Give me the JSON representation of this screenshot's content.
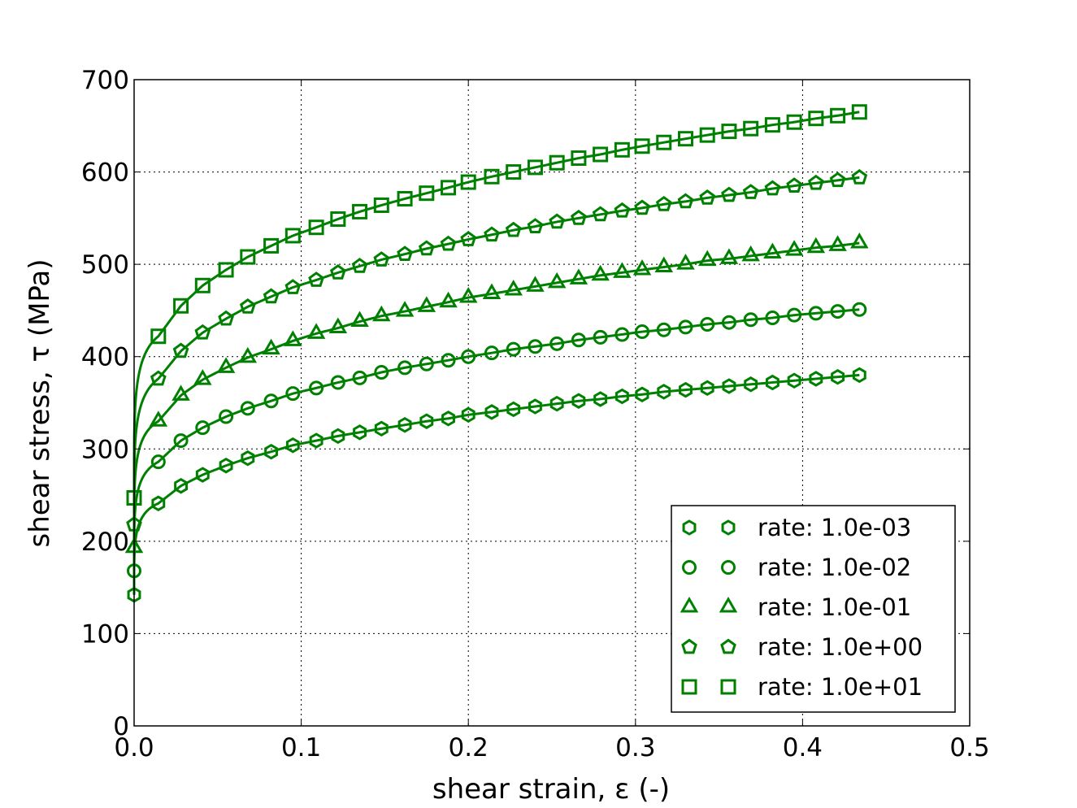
{
  "chart_data": {
    "type": "line",
    "title": "",
    "xlabel": "shear strain, ε (-)",
    "ylabel": "shear stress, τ (MPa)",
    "xlim": [
      0.0,
      0.5
    ],
    "ylim": [
      0,
      700
    ],
    "xticks": [
      "0.0",
      "0.1",
      "0.2",
      "0.3",
      "0.4",
      "0.5"
    ],
    "yticks": [
      "0",
      "100",
      "200",
      "300",
      "400",
      "500",
      "600",
      "700"
    ],
    "grid": true,
    "legend_position": "lower-right",
    "line_color": "#008000",
    "series": [
      {
        "name": "rate: 1.0e-03",
        "marker": "hexagon",
        "x": [
          0.0,
          0.0145,
          0.028,
          0.041,
          0.055,
          0.068,
          0.082,
          0.095,
          0.109,
          0.122,
          0.135,
          0.148,
          0.162,
          0.175,
          0.188,
          0.2,
          0.214,
          0.227,
          0.24,
          0.253,
          0.266,
          0.279,
          0.292,
          0.304,
          0.317,
          0.33,
          0.343,
          0.356,
          0.369,
          0.382,
          0.395,
          0.408,
          0.421,
          0.434
        ],
        "y": [
          142,
          241,
          260,
          272,
          282,
          290,
          297,
          304,
          309,
          314,
          318,
          322,
          326,
          330,
          333,
          337,
          340,
          343,
          346,
          349,
          352,
          354,
          357,
          359,
          362,
          364,
          366,
          368,
          370,
          372,
          374,
          376,
          378,
          380
        ]
      },
      {
        "name": "rate: 1.0e-02",
        "marker": "circle",
        "x": [
          0.0,
          0.0145,
          0.028,
          0.041,
          0.055,
          0.068,
          0.082,
          0.095,
          0.109,
          0.122,
          0.135,
          0.148,
          0.162,
          0.175,
          0.188,
          0.2,
          0.214,
          0.227,
          0.24,
          0.253,
          0.266,
          0.279,
          0.292,
          0.304,
          0.317,
          0.33,
          0.343,
          0.356,
          0.369,
          0.382,
          0.395,
          0.408,
          0.421,
          0.434
        ],
        "y": [
          168,
          286,
          309,
          323,
          335,
          344,
          352,
          360,
          366,
          372,
          377,
          383,
          388,
          392,
          396,
          400,
          404,
          408,
          411,
          414,
          418,
          421,
          424,
          427,
          429,
          432,
          435,
          437,
          440,
          442,
          445,
          447,
          449,
          451
        ]
      },
      {
        "name": "rate: 1.0e-01",
        "marker": "triangle",
        "x": [
          0.0,
          0.0145,
          0.028,
          0.041,
          0.055,
          0.068,
          0.082,
          0.095,
          0.109,
          0.122,
          0.135,
          0.148,
          0.162,
          0.175,
          0.188,
          0.2,
          0.214,
          0.227,
          0.24,
          0.253,
          0.266,
          0.279,
          0.292,
          0.304,
          0.317,
          0.33,
          0.343,
          0.356,
          0.369,
          0.382,
          0.395,
          0.408,
          0.421,
          0.434
        ],
        "y": [
          193,
          330,
          358,
          375,
          388,
          399,
          408,
          417,
          425,
          431,
          438,
          444,
          449,
          454,
          459,
          464,
          468,
          472,
          476,
          480,
          484,
          488,
          491,
          494,
          497,
          500,
          504,
          506,
          509,
          512,
          515,
          518,
          520,
          523
        ]
      },
      {
        "name": "rate: 1.0e+00",
        "marker": "pentagon",
        "x": [
          0.0,
          0.0145,
          0.028,
          0.041,
          0.055,
          0.068,
          0.082,
          0.095,
          0.109,
          0.122,
          0.135,
          0.148,
          0.162,
          0.175,
          0.188,
          0.2,
          0.214,
          0.227,
          0.24,
          0.253,
          0.266,
          0.279,
          0.292,
          0.304,
          0.317,
          0.33,
          0.343,
          0.356,
          0.369,
          0.382,
          0.395,
          0.408,
          0.421,
          0.434
        ],
        "y": [
          218,
          376,
          406,
          426,
          441,
          454,
          465,
          475,
          483,
          491,
          498,
          505,
          511,
          517,
          522,
          527,
          532,
          537,
          541,
          546,
          550,
          554,
          558,
          561,
          565,
          568,
          572,
          575,
          578,
          582,
          585,
          588,
          591,
          594
        ]
      },
      {
        "name": "rate: 1.0e+01",
        "marker": "square",
        "x": [
          0.0,
          0.0145,
          0.028,
          0.041,
          0.055,
          0.068,
          0.082,
          0.095,
          0.109,
          0.122,
          0.135,
          0.148,
          0.162,
          0.175,
          0.188,
          0.2,
          0.214,
          0.227,
          0.24,
          0.253,
          0.266,
          0.279,
          0.292,
          0.304,
          0.317,
          0.33,
          0.343,
          0.356,
          0.369,
          0.382,
          0.395,
          0.408,
          0.421,
          0.434
        ],
        "y": [
          247,
          422,
          455,
          477,
          494,
          508,
          520,
          531,
          540,
          549,
          557,
          564,
          571,
          577,
          583,
          589,
          595,
          600,
          605,
          610,
          615,
          619,
          624,
          628,
          632,
          636,
          640,
          644,
          647,
          651,
          654,
          658,
          661,
          665
        ]
      }
    ]
  }
}
